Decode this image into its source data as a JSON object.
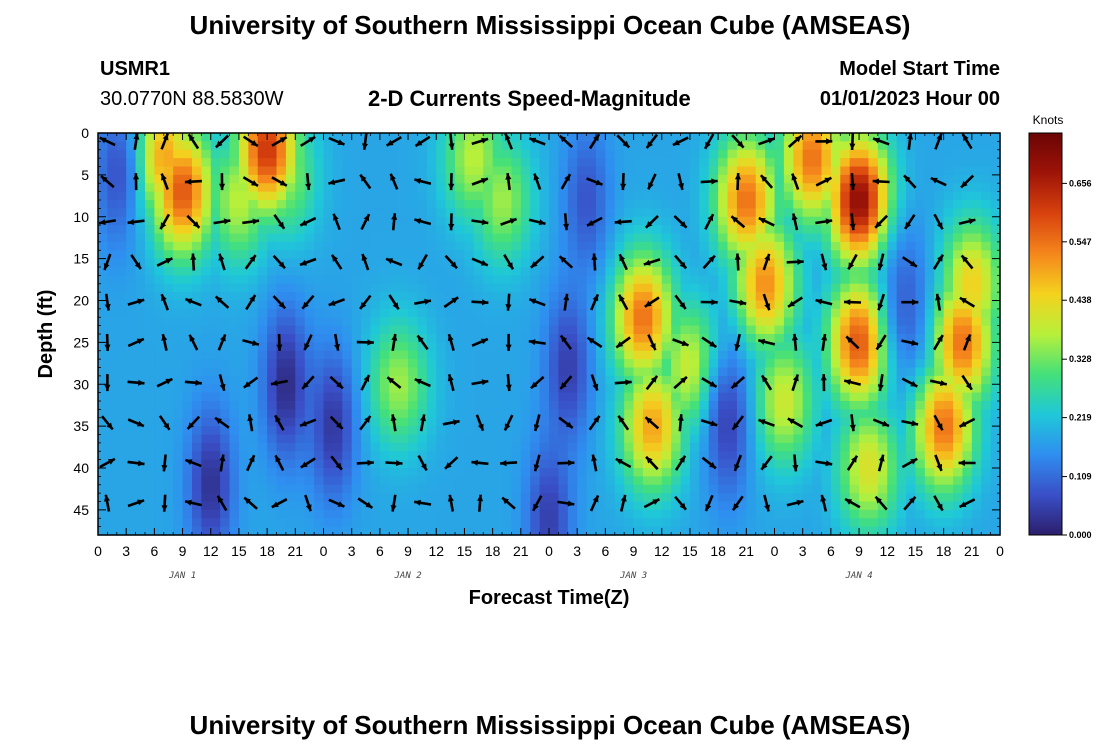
{
  "header": {
    "title": "University of Southern Mississippi Ocean Cube (AMSEAS)",
    "station": "USMR1",
    "coords": "30.0770N  88.5830W",
    "subtitle": "2-D Currents Speed-Magnitude",
    "model_start_label": "Model Start Time",
    "model_start_value": "01/01/2023 Hour 00"
  },
  "footer": {
    "title": "University of Southern Mississippi Ocean Cube (AMSEAS)"
  },
  "colors": {
    "scale": [
      "#2b1e6b",
      "#3a4fc8",
      "#2f8ef0",
      "#1fc8d8",
      "#44e07a",
      "#b8f03a",
      "#f4d21e",
      "#f5861c",
      "#d8420e",
      "#9e1408",
      "#6b0404"
    ]
  },
  "chart_data": {
    "type": "heatmap",
    "title": "2-D Currents Speed-Magnitude",
    "xlabel": "Forecast Time(Z)",
    "ylabel": "Depth (ft)",
    "x_range_hours": [
      0,
      96
    ],
    "x_tick_labels": [
      "0",
      "3",
      "6",
      "9",
      "12",
      "15",
      "18",
      "21",
      "0",
      "3",
      "6",
      "9",
      "12",
      "15",
      "18",
      "21",
      "0",
      "3",
      "6",
      "9",
      "12",
      "15",
      "18",
      "21",
      "0",
      "3",
      "6",
      "9",
      "12",
      "15",
      "18",
      "21",
      "0"
    ],
    "day_labels": [
      {
        "label": "JAN 1",
        "hour": 9
      },
      {
        "label": "JAN 2",
        "hour": 33
      },
      {
        "label": "JAN 3",
        "hour": 57
      },
      {
        "label": "JAN 4",
        "hour": 81
      }
    ],
    "y_range_ft": [
      0,
      48
    ],
    "y_ticks": [
      0,
      5,
      10,
      15,
      20,
      25,
      30,
      35,
      40,
      45
    ],
    "colorbar": {
      "unit": "Knots",
      "range": [
        0,
        0.75
      ],
      "tick_labels": [
        "0.656",
        "0.547",
        "0.438",
        "0.328",
        "0.219",
        "0.109",
        "0.000"
      ]
    },
    "speed_blobs_knots": [
      {
        "hour": 9,
        "depth": 7,
        "peak": 0.58
      },
      {
        "hour": 18,
        "depth": 2,
        "peak": 0.62
      },
      {
        "hour": 7,
        "depth": 3,
        "peak": 0.5
      },
      {
        "hour": 15,
        "depth": 8,
        "peak": 0.38
      },
      {
        "hour": 20,
        "depth": 5,
        "peak": 0.35
      },
      {
        "hour": 40,
        "depth": 3,
        "peak": 0.38
      },
      {
        "hour": 43,
        "depth": 8,
        "peak": 0.36
      },
      {
        "hour": 32,
        "depth": 30,
        "peak": 0.36
      },
      {
        "hour": 58,
        "depth": 22,
        "peak": 0.55
      },
      {
        "hour": 59,
        "depth": 35,
        "peak": 0.5
      },
      {
        "hour": 63,
        "depth": 28,
        "peak": 0.4
      },
      {
        "hour": 69,
        "depth": 8,
        "peak": 0.55
      },
      {
        "hour": 71,
        "depth": 18,
        "peak": 0.52
      },
      {
        "hour": 73,
        "depth": 32,
        "peak": 0.4
      },
      {
        "hour": 76,
        "depth": 3,
        "peak": 0.55
      },
      {
        "hour": 81,
        "depth": 8,
        "peak": 0.7
      },
      {
        "hour": 81,
        "depth": 25,
        "peak": 0.58
      },
      {
        "hour": 82,
        "depth": 40,
        "peak": 0.42
      },
      {
        "hour": 90,
        "depth": 35,
        "peak": 0.55
      },
      {
        "hour": 92,
        "depth": 25,
        "peak": 0.55
      },
      {
        "hour": 93,
        "depth": 18,
        "peak": 0.45
      }
    ],
    "background_knots": 0.18,
    "low_speed_troughs_knots": [
      {
        "hour": 20,
        "depth": 30,
        "floor": 0.02
      },
      {
        "hour": 12,
        "depth": 42,
        "floor": 0.03
      },
      {
        "hour": 25,
        "depth": 35,
        "floor": 0.04
      },
      {
        "hour": 50,
        "depth": 28,
        "floor": 0.05
      },
      {
        "hour": 52,
        "depth": 8,
        "floor": 0.08
      },
      {
        "hour": 67,
        "depth": 35,
        "floor": 0.06
      },
      {
        "hour": 2,
        "depth": 5,
        "floor": 0.08
      },
      {
        "hour": 86,
        "depth": 20,
        "floor": 0.1
      },
      {
        "hour": 48,
        "depth": 46,
        "floor": 0.05
      }
    ]
  }
}
